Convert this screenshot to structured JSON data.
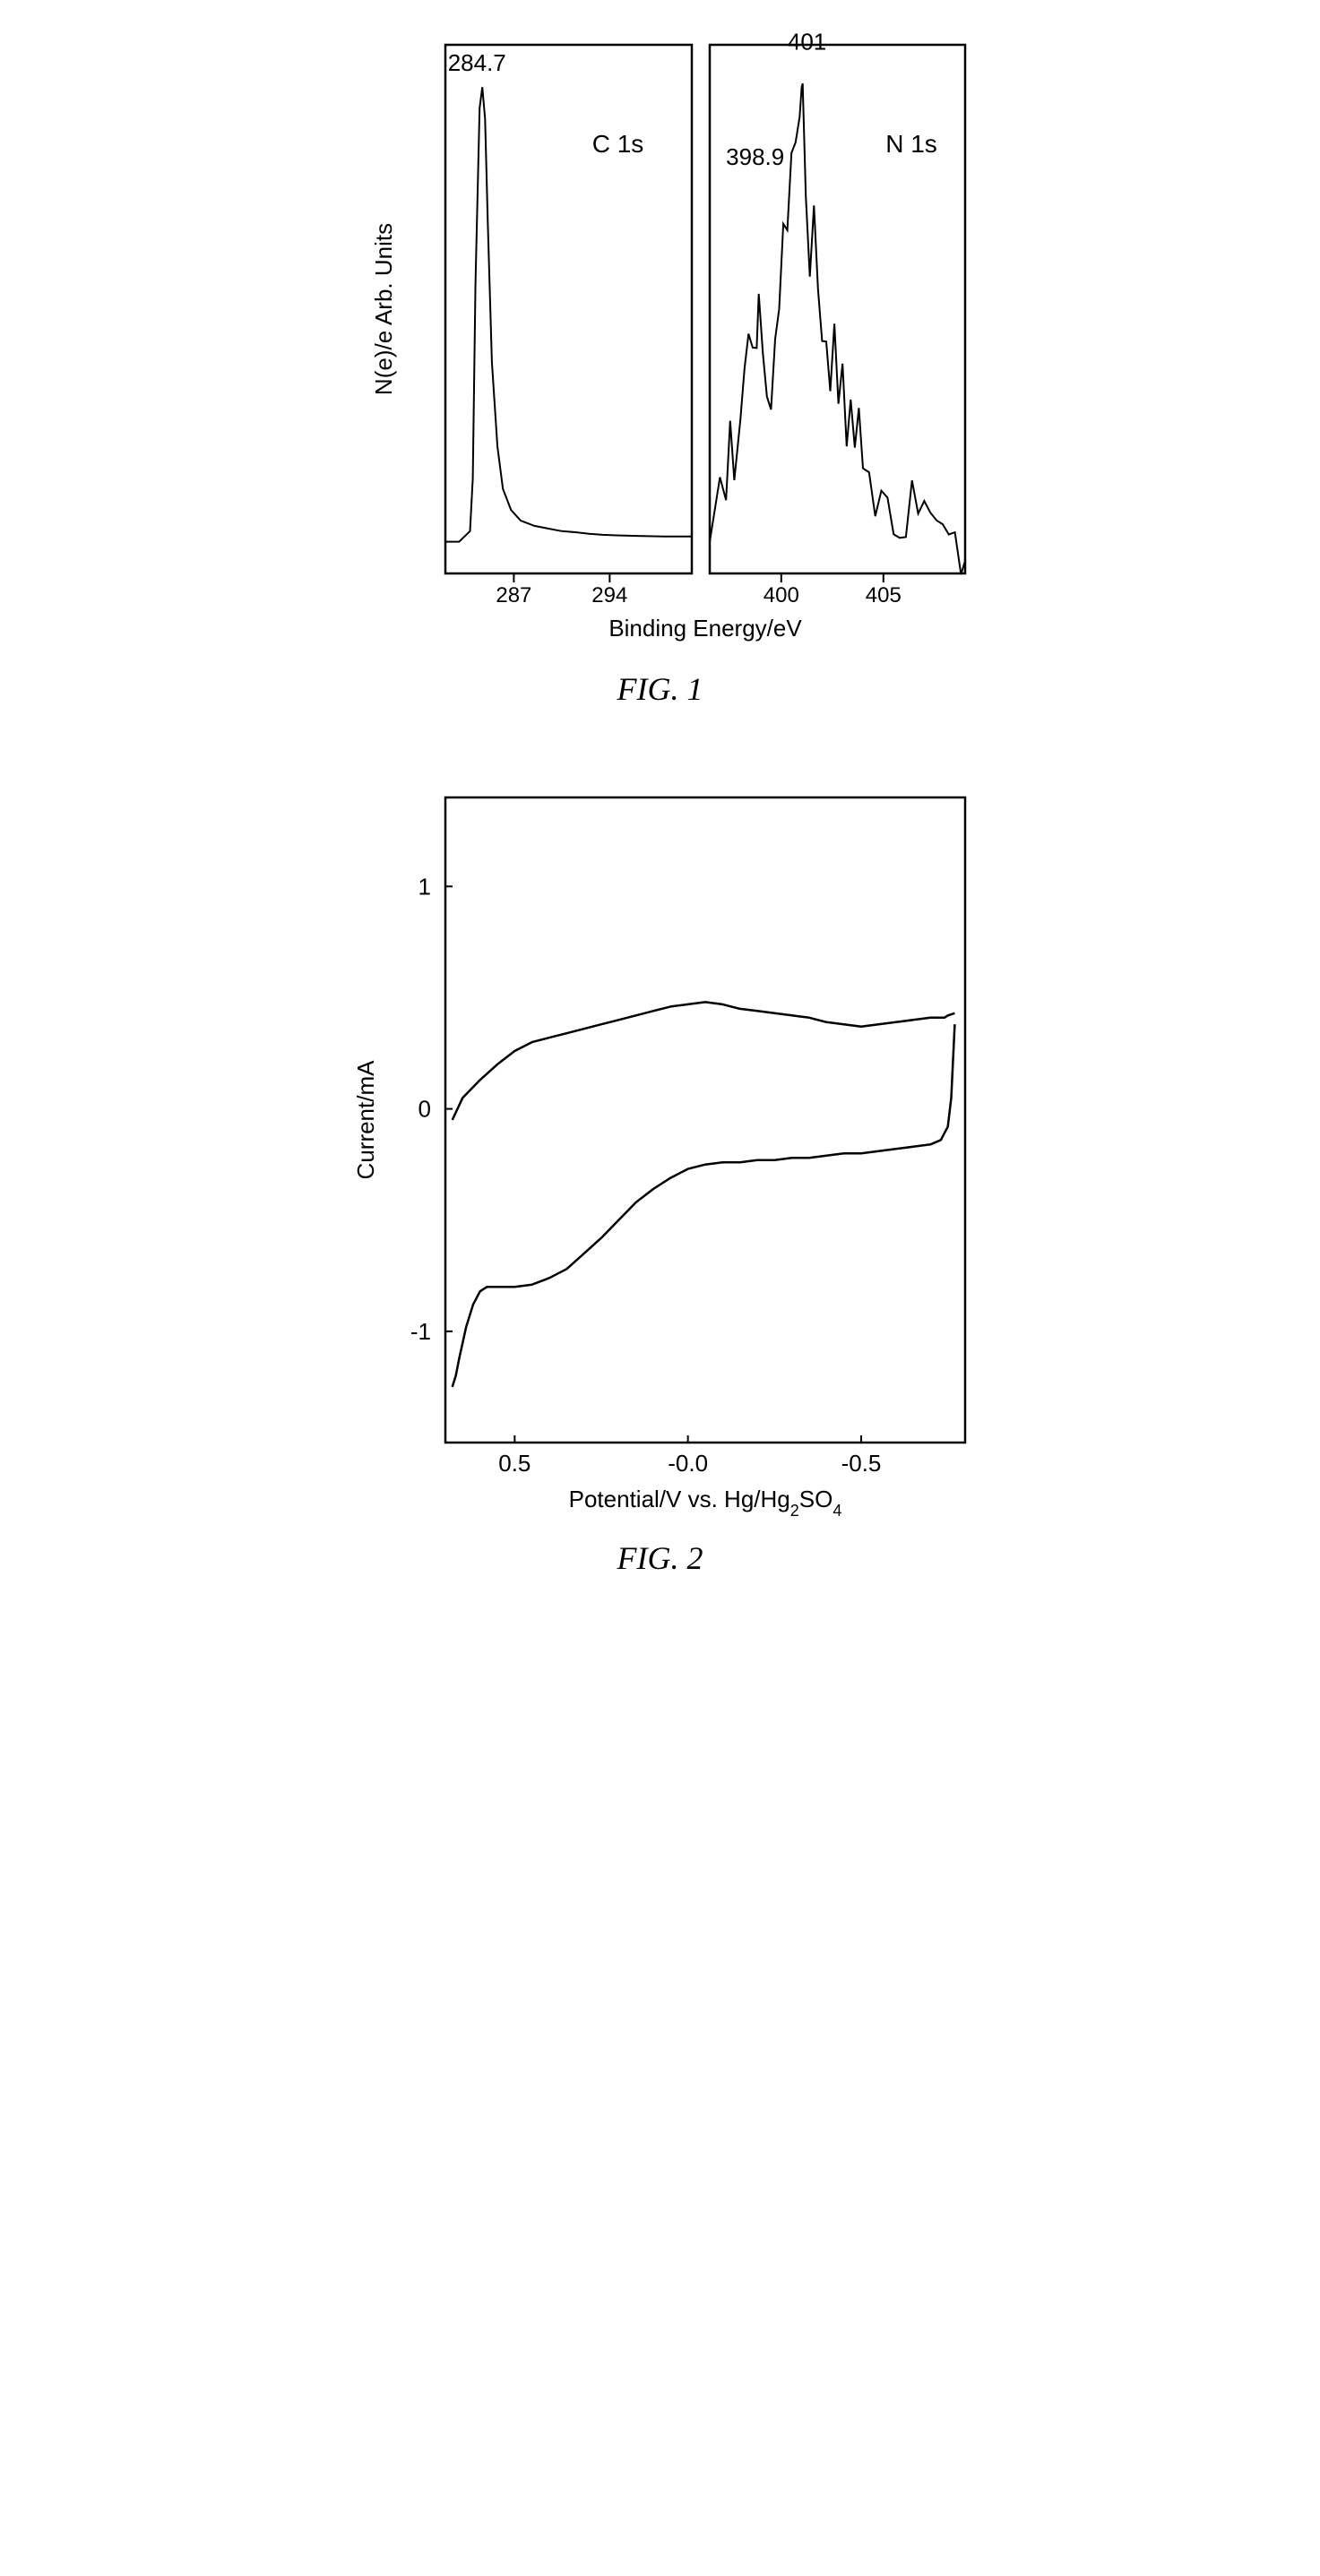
{
  "figure1": {
    "caption": "FIG. 1",
    "x_axis_label": "Binding Energy/eV",
    "y_axis_label": "N(e)/e Arb. Units",
    "panel_stroke": "#000000",
    "panel_fill": "#ffffff",
    "line_color": "#000000",
    "line_width": 2,
    "font_family": "Arial",
    "left_panel": {
      "label": "C 1s",
      "peak_label": "284.7",
      "xticks": [
        287,
        294
      ],
      "xlim": [
        282,
        300
      ],
      "ylim": [
        0,
        100
      ],
      "data": [
        [
          282.0,
          6
        ],
        [
          283.0,
          6
        ],
        [
          283.8,
          8
        ],
        [
          284.0,
          18
        ],
        [
          284.2,
          55
        ],
        [
          284.5,
          88
        ],
        [
          284.7,
          92
        ],
        [
          284.9,
          86
        ],
        [
          285.1,
          66
        ],
        [
          285.4,
          40
        ],
        [
          285.8,
          24
        ],
        [
          286.2,
          16
        ],
        [
          286.8,
          12
        ],
        [
          287.5,
          10
        ],
        [
          288.5,
          9
        ],
        [
          289.5,
          8.5
        ],
        [
          290.5,
          8
        ],
        [
          291.5,
          7.8
        ],
        [
          292.5,
          7.5
        ],
        [
          293.5,
          7.3
        ],
        [
          294.5,
          7.2
        ],
        [
          296,
          7.1
        ],
        [
          298,
          7.0
        ],
        [
          300,
          7.0
        ]
      ]
    },
    "right_panel": {
      "label": "N 1s",
      "peak_label_1": "398.9",
      "peak_label_2": "401",
      "xticks": [
        400,
        405
      ],
      "xlim": [
        396.5,
        409
      ],
      "ylim": [
        0,
        100
      ],
      "noise_amplitude": 4.0,
      "data": [
        [
          396.5,
          12
        ],
        [
          397.0,
          14
        ],
        [
          397.3,
          20
        ],
        [
          397.5,
          28
        ],
        [
          397.7,
          22
        ],
        [
          398.0,
          30
        ],
        [
          398.2,
          40
        ],
        [
          398.4,
          48
        ],
        [
          398.6,
          56
        ],
        [
          398.8,
          52
        ],
        [
          398.9,
          62
        ],
        [
          399.1,
          50
        ],
        [
          399.3,
          44
        ],
        [
          399.5,
          40
        ],
        [
          399.7,
          48
        ],
        [
          399.9,
          56
        ],
        [
          400.1,
          62
        ],
        [
          400.3,
          70
        ],
        [
          400.5,
          78
        ],
        [
          400.7,
          88
        ],
        [
          400.9,
          84
        ],
        [
          401.0,
          92
        ],
        [
          401.05,
          96
        ],
        [
          401.2,
          82
        ],
        [
          401.4,
          72
        ],
        [
          401.6,
          80
        ],
        [
          401.8,
          64
        ],
        [
          402.0,
          56
        ],
        [
          402.2,
          60
        ],
        [
          402.4,
          44
        ],
        [
          402.6,
          48
        ],
        [
          402.8,
          36
        ],
        [
          403.0,
          40
        ],
        [
          403.2,
          30
        ],
        [
          403.4,
          34
        ],
        [
          403.6,
          26
        ],
        [
          403.8,
          28
        ],
        [
          404.0,
          22
        ],
        [
          404.3,
          26
        ],
        [
          404.6,
          20
        ],
        [
          404.9,
          24
        ],
        [
          405.2,
          18
        ],
        [
          405.5,
          20
        ],
        [
          405.8,
          16
        ],
        [
          406.1,
          18
        ],
        [
          406.4,
          14
        ],
        [
          406.7,
          16
        ],
        [
          407.0,
          12
        ],
        [
          407.3,
          18
        ],
        [
          407.6,
          12
        ],
        [
          407.9,
          15
        ],
        [
          408.2,
          11
        ],
        [
          408.5,
          14
        ],
        [
          408.8,
          12
        ],
        [
          409.0,
          13
        ]
      ]
    }
  },
  "figure2": {
    "caption": "FIG. 2",
    "x_axis_label_prefix": "Potential/V vs. Hg/Hg",
    "x_axis_label_sub": "2",
    "x_axis_label_suffix": "SO",
    "x_axis_label_sub2": "4",
    "y_axis_label": "Current/mA",
    "panel_stroke": "#000000",
    "panel_fill": "#ffffff",
    "line_color": "#000000",
    "line_width": 2.5,
    "font_family": "Arial",
    "xlim": [
      0.7,
      -0.8
    ],
    "ylim": [
      -1.5,
      1.4
    ],
    "xticks": [
      0.5,
      -0.0,
      -0.5
    ],
    "xtick_labels": [
      "0.5",
      "-0.0",
      "-0.5"
    ],
    "yticks": [
      1,
      0,
      -1
    ],
    "tick_length": 8,
    "upper": [
      [
        0.68,
        -0.05
      ],
      [
        0.65,
        0.05
      ],
      [
        0.6,
        0.13
      ],
      [
        0.55,
        0.2
      ],
      [
        0.5,
        0.26
      ],
      [
        0.45,
        0.3
      ],
      [
        0.4,
        0.32
      ],
      [
        0.35,
        0.34
      ],
      [
        0.3,
        0.36
      ],
      [
        0.25,
        0.38
      ],
      [
        0.2,
        0.4
      ],
      [
        0.15,
        0.42
      ],
      [
        0.1,
        0.44
      ],
      [
        0.05,
        0.46
      ],
      [
        0.0,
        0.47
      ],
      [
        -0.05,
        0.48
      ],
      [
        -0.1,
        0.47
      ],
      [
        -0.15,
        0.45
      ],
      [
        -0.2,
        0.44
      ],
      [
        -0.25,
        0.43
      ],
      [
        -0.3,
        0.42
      ],
      [
        -0.35,
        0.41
      ],
      [
        -0.4,
        0.39
      ],
      [
        -0.45,
        0.38
      ],
      [
        -0.5,
        0.37
      ],
      [
        -0.55,
        0.38
      ],
      [
        -0.6,
        0.39
      ],
      [
        -0.65,
        0.4
      ],
      [
        -0.7,
        0.41
      ],
      [
        -0.74,
        0.41
      ],
      [
        -0.75,
        0.42
      ],
      [
        -0.77,
        0.43
      ]
    ],
    "lower": [
      [
        -0.77,
        0.38
      ],
      [
        -0.76,
        0.05
      ],
      [
        -0.75,
        -0.08
      ],
      [
        -0.73,
        -0.14
      ],
      [
        -0.7,
        -0.16
      ],
      [
        -0.65,
        -0.17
      ],
      [
        -0.6,
        -0.18
      ],
      [
        -0.55,
        -0.19
      ],
      [
        -0.5,
        -0.2
      ],
      [
        -0.45,
        -0.2
      ],
      [
        -0.4,
        -0.21
      ],
      [
        -0.35,
        -0.22
      ],
      [
        -0.3,
        -0.22
      ],
      [
        -0.25,
        -0.23
      ],
      [
        -0.2,
        -0.23
      ],
      [
        -0.15,
        -0.24
      ],
      [
        -0.1,
        -0.24
      ],
      [
        -0.05,
        -0.25
      ],
      [
        0.0,
        -0.27
      ],
      [
        0.05,
        -0.31
      ],
      [
        0.1,
        -0.36
      ],
      [
        0.15,
        -0.42
      ],
      [
        0.2,
        -0.5
      ],
      [
        0.25,
        -0.58
      ],
      [
        0.3,
        -0.65
      ],
      [
        0.35,
        -0.72
      ],
      [
        0.4,
        -0.76
      ],
      [
        0.45,
        -0.79
      ],
      [
        0.5,
        -0.8
      ],
      [
        0.55,
        -0.8
      ],
      [
        0.58,
        -0.8
      ],
      [
        0.6,
        -0.82
      ],
      [
        0.62,
        -0.88
      ],
      [
        0.64,
        -0.98
      ],
      [
        0.66,
        -1.12
      ],
      [
        0.67,
        -1.2
      ],
      [
        0.68,
        -1.25
      ]
    ]
  }
}
